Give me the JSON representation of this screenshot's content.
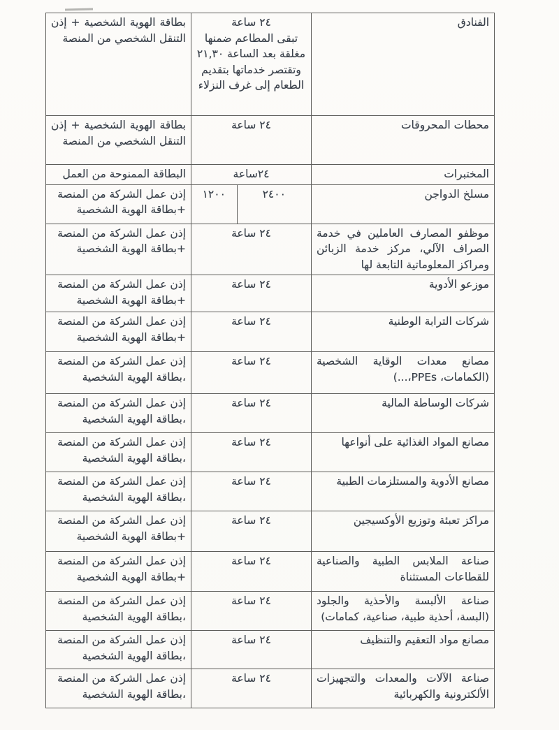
{
  "page": {
    "colors": {
      "paper": "#fcfbf9",
      "ink": "#39404a",
      "table_border": "#5d5d5a"
    }
  },
  "table": {
    "rows": [
      {
        "category": "الفنادق",
        "hours": "٢٤ ساعة\nتبقى المطاعم ضمنها مغلقة بعد الساعة ٢١,٣٠ وتقتصر خدماتها بتقديم الطعام إلى غرف النزلاء",
        "permit": "بطاقة الهوية الشخصية + إذن التنقل الشخصي من المنصة"
      },
      {
        "category": "محطات المحروقات",
        "hours": "٢٤ ساعة",
        "permit": "بطاقة الهوية الشخصية + إذن التنقل الشخصي من المنصة"
      },
      {
        "category": "المختبرات",
        "hours": "٢٤ساعة",
        "permit": "البطاقة الممنوحة من العمل"
      },
      {
        "category": "مسلخ الدواجن",
        "hours_right": "٢٤٠٠",
        "hours_left": "١٢٠٠",
        "permit": "إذن عمل الشركة من المنصة\n+بطاقة الهوية الشخصية"
      },
      {
        "category": "موظفو المصارف العاملين في خدمة الصراف الآلي، مركز خدمة الزبائن ومراكز المعلوماتية التابعة لها",
        "hours": "٢٤ ساعة",
        "permit": "إذن عمل الشركة من المنصة\n+بطاقة الهوية الشخصية"
      },
      {
        "category": "موزعو الأدوية",
        "hours": "٢٤ ساعة",
        "permit": "إذن عمل الشركة من المنصة\n+بطاقة الهوية الشخصية"
      },
      {
        "category": "شركات الترابة الوطنية",
        "hours": "٢٤ ساعة",
        "permit": "إذن عمل الشركة من المنصة\n+بطاقة الهوية الشخصية"
      },
      {
        "category": "مصانع معدات الوقاية الشخصية (الكمامات، PPEs،...)",
        "hours": "٢٤ ساعة",
        "permit": "إذن عمل الشركة من المنصة\n،بطاقة الهوية الشخصية"
      },
      {
        "category": "شركات الوساطة المالية",
        "hours": "٢٤ ساعة",
        "permit": "إذن عمل الشركة من المنصة\n،بطاقة الهوية الشخصية"
      },
      {
        "category": "مصانع المواد الغذائية على أنواعها",
        "hours": "٢٤ ساعة",
        "permit": "إذن عمل الشركة من المنصة\n،بطاقة الهوية الشخصية"
      },
      {
        "category": "مصانع الأدوية والمستلزمات الطبية",
        "hours": "٢٤ ساعة",
        "permit": "إذن عمل الشركة من المنصة\n،بطاقة الهوية الشخصية"
      },
      {
        "category": "مراكز تعبئة وتوزيع الأوكسيجين",
        "hours": "٢٤ ساعة",
        "permit": "إذن عمل الشركة من المنصة\n+بطاقة الهوية الشخصية"
      },
      {
        "category": "صناعة الملابس الطبية والصناعية للقطاعات المستثناة",
        "hours": "٢٤ ساعة",
        "permit": "إذن عمل الشركة من المنصة\n+بطاقة الهوية الشخصية"
      },
      {
        "category": "صناعة الألبسة والأحذية والجلود (البسة، أحذية طبية، صناعية، كمامات)",
        "hours": "٢٤ ساعة",
        "permit": "إذن عمل الشركة من المنصة\n،بطاقة الهوية الشخصية"
      },
      {
        "category": "مصانع مواد التعقيم والتنظيف",
        "hours": "٢٤ ساعة",
        "permit": "إذن عمل الشركة من المنصة\n،بطاقة الهوية الشخصية"
      },
      {
        "category": "صناعة الآلات والمعدات والتجهيزات الألكترونية والكهربائية",
        "hours": "٢٤ ساعة",
        "permit": "إذن عمل الشركة من المنصة\n،بطاقة الهوية الشخصية"
      }
    ]
  }
}
